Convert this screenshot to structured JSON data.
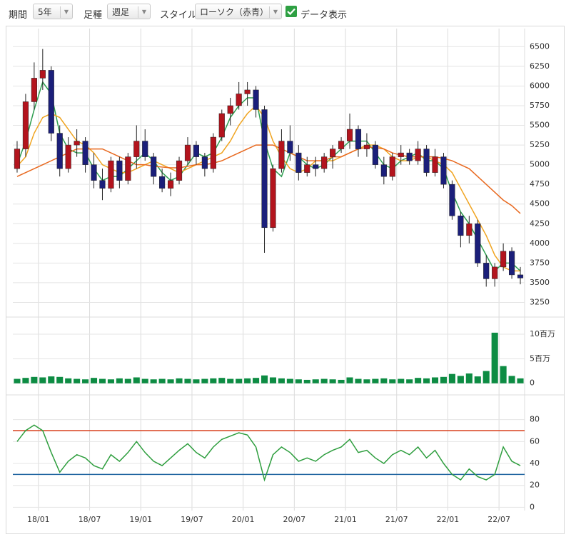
{
  "toolbar": {
    "period_label": "期間",
    "period": "5年",
    "bar_label": "足種",
    "bar": "週足",
    "style_label": "スタイル",
    "style": "ローソク（赤青）",
    "data_label": "データ表示",
    "data_checked": true
  },
  "chart_data": [
    {
      "type": "candlestick",
      "categories": [
        null,
        null,
        null,
        "18/01",
        null,
        null,
        null,
        null,
        null,
        "18/07",
        null,
        null,
        null,
        null,
        null,
        "19/01",
        null,
        null,
        null,
        null,
        null,
        "19/07",
        null,
        null,
        null,
        null,
        null,
        "20/01",
        null,
        null,
        null,
        null,
        null,
        "20/07",
        null,
        null,
        null,
        null,
        null,
        "21/01",
        null,
        null,
        null,
        null,
        null,
        "21/07",
        null,
        null,
        null,
        null,
        null,
        "22/01",
        null,
        null,
        null,
        null,
        null,
        "22/07",
        null,
        null
      ],
      "open": [
        4950,
        5200,
        5800,
        6100,
        6200,
        5400,
        4950,
        5250,
        5300,
        5000,
        4800,
        4700,
        5050,
        4800,
        5100,
        5300,
        5100,
        4850,
        4700,
        4800,
        5050,
        5250,
        5100,
        4950,
        5350,
        5650,
        5750,
        5900,
        5950,
        5700,
        4200,
        4950,
        5300,
        5150,
        4900,
        5000,
        4950,
        5100,
        5200,
        5300,
        5450,
        5200,
        5250,
        5000,
        4850,
        5100,
        5150,
        5050,
        5200,
        4900,
        5100,
        4750,
        4350,
        4100,
        4250,
        3750,
        3550,
        3700,
        3900,
        3600
      ],
      "high": [
        5300,
        5900,
        6300,
        6470,
        6250,
        5500,
        5350,
        5450,
        5350,
        5150,
        4950,
        5100,
        5100,
        5150,
        5500,
        5450,
        5150,
        4950,
        4900,
        5100,
        5350,
        5300,
        5150,
        5400,
        5700,
        5850,
        6050,
        6050,
        6000,
        5750,
        5000,
        5450,
        5500,
        5250,
        5100,
        5100,
        5150,
        5250,
        5350,
        5650,
        5500,
        5400,
        5300,
        5100,
        5150,
        5250,
        5200,
        5300,
        5250,
        5200,
        5150,
        4800,
        4400,
        4350,
        4300,
        3850,
        3750,
        4000,
        3950,
        3700
      ],
      "low": [
        4900,
        5100,
        5700,
        5950,
        5300,
        4850,
        4900,
        5100,
        4900,
        4700,
        4550,
        4650,
        4700,
        4750,
        4950,
        5050,
        4750,
        4650,
        4600,
        4750,
        5000,
        5000,
        4850,
        4900,
        5300,
        5500,
        5700,
        5750,
        5600,
        3880,
        4150,
        4900,
        5050,
        4800,
        4850,
        4850,
        4900,
        4950,
        5150,
        5200,
        5100,
        5100,
        4950,
        4750,
        4800,
        5000,
        5000,
        5000,
        4850,
        4850,
        4700,
        4300,
        3950,
        4000,
        3700,
        3450,
        3450,
        3650,
        3550,
        3480
      ],
      "close": [
        5200,
        5800,
        6100,
        6200,
        5400,
        4950,
        5250,
        5300,
        5000,
        4800,
        4700,
        5050,
        4800,
        5100,
        5300,
        5100,
        4850,
        4700,
        4800,
        5050,
        5250,
        5100,
        4950,
        5350,
        5650,
        5750,
        5900,
        5950,
        5700,
        4200,
        4950,
        5300,
        5150,
        4900,
        5000,
        4950,
        5100,
        5200,
        5300,
        5450,
        5200,
        5250,
        5000,
        4850,
        5100,
        5150,
        5050,
        5200,
        4900,
        5100,
        4750,
        4350,
        4100,
        4250,
        3750,
        3550,
        3700,
        3900,
        3600,
        3560
      ],
      "up_color": "#b3141d",
      "down_color": "#1b1f7a",
      "series": [
        {
          "color": "#2e9e50",
          "values": [
            5000,
            5300,
            5700,
            6050,
            5900,
            5400,
            5200,
            5150,
            5150,
            4950,
            4800,
            4850,
            4850,
            4950,
            5050,
            5150,
            5050,
            4900,
            4800,
            4850,
            5000,
            5150,
            5100,
            5150,
            5350,
            5600,
            5750,
            5850,
            5850,
            5300,
            4950,
            4850,
            5150,
            5100,
            5000,
            4950,
            5000,
            5100,
            5200,
            5300,
            5300,
            5300,
            5150,
            5000,
            4950,
            5050,
            5100,
            5150,
            5050,
            5050,
            4950,
            4650,
            4400,
            4250,
            4050,
            3850,
            3650,
            3750,
            3750,
            3650
          ]
        },
        {
          "color": "#f0a420",
          "values": [
            4980,
            5100,
            5400,
            5600,
            5650,
            5600,
            5450,
            5300,
            5250,
            5150,
            5000,
            4950,
            4900,
            4900,
            4950,
            5000,
            5050,
            5000,
            4950,
            4900,
            4950,
            5000,
            5050,
            5100,
            5150,
            5300,
            5500,
            5650,
            5750,
            5600,
            5300,
            5100,
            4950,
            4900,
            4950,
            5050,
            5050,
            5050,
            5100,
            5150,
            5200,
            5250,
            5250,
            5200,
            5100,
            5050,
            5050,
            5100,
            5100,
            5050,
            5000,
            4900,
            4700,
            4500,
            4300,
            4100,
            3850,
            3700,
            3650,
            3650
          ]
        },
        {
          "color": "#e8681e",
          "values": [
            4850,
            4900,
            4950,
            5000,
            5050,
            5100,
            5150,
            5200,
            5200,
            5200,
            5200,
            5150,
            5100,
            5050,
            5000,
            5000,
            4980,
            4970,
            4960,
            4960,
            4980,
            5000,
            5000,
            5020,
            5050,
            5100,
            5150,
            5200,
            5250,
            5250,
            5250,
            5200,
            5150,
            5100,
            5050,
            5050,
            5050,
            5100,
            5100,
            5150,
            5200,
            5220,
            5220,
            5200,
            5150,
            5120,
            5100,
            5100,
            5100,
            5100,
            5080,
            5050,
            5000,
            4950,
            4850,
            4750,
            4650,
            4550,
            4480,
            4380
          ]
        }
      ],
      "ylim": [
        3100,
        6730
      ],
      "yticks": [
        3250,
        3500,
        3750,
        4000,
        4250,
        4500,
        4750,
        5000,
        5250,
        5500,
        5750,
        6000,
        6250,
        6500
      ],
      "grid": true
    },
    {
      "type": "bar",
      "color": "#0d8c43",
      "values": [
        900000,
        1100000,
        1300000,
        1200000,
        1400000,
        1300000,
        1000000,
        900000,
        800000,
        1100000,
        900000,
        800000,
        1000000,
        900000,
        1200000,
        900000,
        800000,
        900000,
        800000,
        1000000,
        900000,
        800000,
        900000,
        1000000,
        1100000,
        900000,
        900000,
        1000000,
        1100000,
        1600000,
        1200000,
        1000000,
        900000,
        800000,
        700000,
        800000,
        900000,
        800000,
        700000,
        1200000,
        900000,
        800000,
        900000,
        1000000,
        800000,
        900000,
        800000,
        1100000,
        1000000,
        1200000,
        1300000,
        1900000,
        1500000,
        2000000,
        1400000,
        2500000,
        10300000,
        3500000,
        1500000,
        1000000
      ],
      "ylim": [
        -1200000,
        12900000
      ],
      "yticks": [
        0,
        {
          "value": 5000000,
          "label": "5百万"
        },
        {
          "value": 10000000,
          "label": "10百万"
        }
      ],
      "grid": true
    },
    {
      "type": "line",
      "color": "#2e9e3e",
      "values": [
        60,
        70,
        75,
        70,
        50,
        32,
        42,
        48,
        45,
        38,
        35,
        48,
        42,
        50,
        60,
        50,
        42,
        38,
        45,
        52,
        58,
        50,
        45,
        55,
        62,
        65,
        68,
        66,
        55,
        25,
        48,
        55,
        50,
        42,
        45,
        42,
        48,
        52,
        55,
        62,
        50,
        52,
        45,
        40,
        48,
        52,
        48,
        55,
        45,
        52,
        40,
        30,
        25,
        35,
        28,
        25,
        30,
        55,
        42,
        38
      ],
      "levels": [
        {
          "value": 70,
          "color": "#d9411e"
        },
        {
          "value": 30,
          "color": "#1f64a0"
        }
      ],
      "ylim": [
        -3,
        98
      ],
      "yticks": [
        0,
        20,
        40,
        60,
        80
      ],
      "grid": true
    }
  ]
}
